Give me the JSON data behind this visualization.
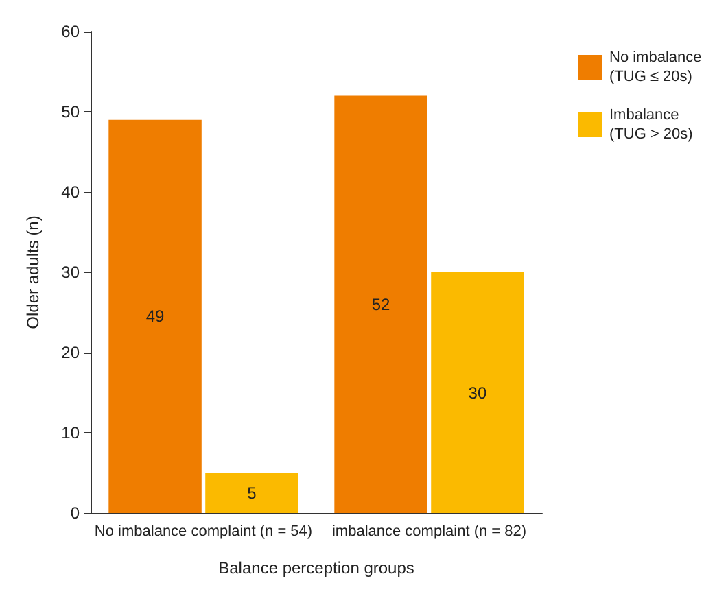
{
  "chart_data": {
    "type": "bar",
    "xlabel": "Balance perception groups",
    "ylabel": "Older adults (n)",
    "categories": [
      "No imbalance complaint (n = 54)",
      "imbalance complaint (n = 82)"
    ],
    "series": [
      {
        "name": "No imbalance\n(TUG ≤ 20s)",
        "color": "#ef7d00",
        "values": [
          49,
          52
        ]
      },
      {
        "name": "Imbalance\n(TUG > 20s)",
        "color": "#fbba00",
        "values": [
          5,
          30
        ]
      }
    ],
    "ylim": [
      0,
      60
    ],
    "yticks": [
      0,
      10,
      20,
      30,
      40,
      50,
      60
    ],
    "data_labels": true,
    "legend": "top right",
    "grid": false
  }
}
